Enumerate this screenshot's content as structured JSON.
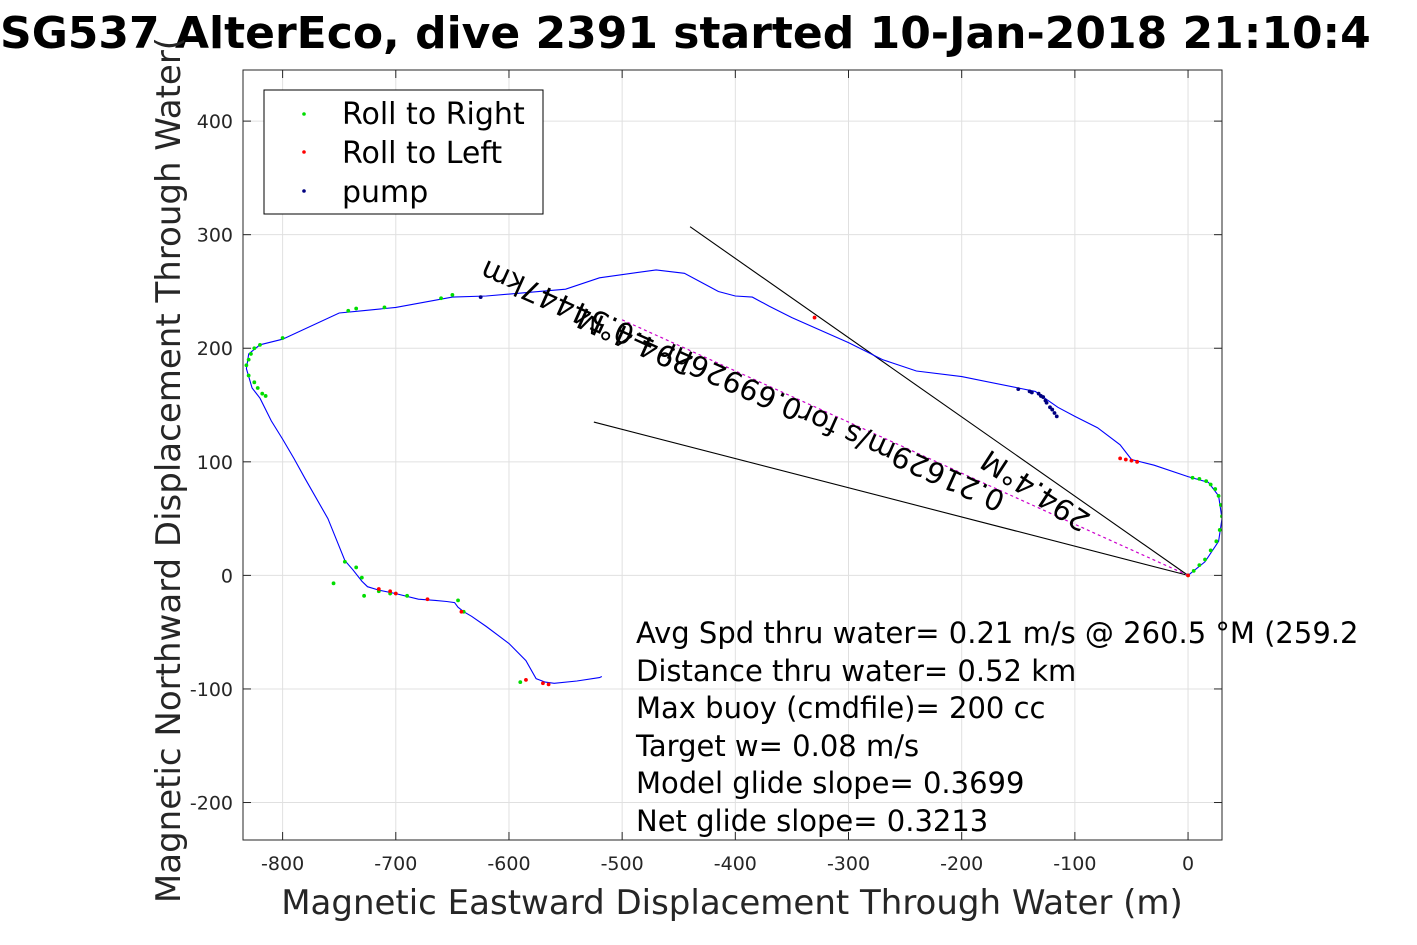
{
  "title": "SG537 AlterEco, dive 2391 started 10-Jan-2018 21:10:4",
  "chart_data": {
    "type": "line",
    "title": "SG537 AlterEco, dive 2391 started 10-Jan-2018 21:10:4",
    "xlabel": "Magnetic Eastward Displacement Through Water (m)",
    "ylabel": "Magnetic Northward Displacement Through Water(",
    "xlim": [
      -835,
      30
    ],
    "ylim": [
      -233,
      445
    ],
    "xticks": [
      -800,
      -700,
      -600,
      -500,
      -400,
      -300,
      -200,
      -100,
      0
    ],
    "yticks": [
      -200,
      -100,
      0,
      100,
      200,
      300,
      400
    ],
    "grid": true,
    "legend_position": "top-left",
    "colors": {
      "track": "#0000ff",
      "roll_right": "#00dd00",
      "roll_left": "#ff0000",
      "pump": "#000080",
      "vector": "#cc00cc",
      "lines": "#000000"
    },
    "legend": [
      {
        "label": "Roll to Right",
        "color": "#00dd00"
      },
      {
        "label": "Roll to Left",
        "color": "#ff0000"
      },
      {
        "label": "pump",
        "color": "#000080"
      }
    ],
    "track": {
      "x": [
        0,
        15,
        27,
        30,
        27,
        18,
        0,
        -30,
        -50,
        -60,
        -80,
        -100,
        -115,
        -125,
        -135,
        -150,
        -200,
        -240,
        -270,
        -300,
        -350,
        -370,
        -385,
        -400,
        -415,
        -430,
        -445,
        -470,
        -520,
        -550,
        -620,
        -650,
        -700,
        -730,
        -750,
        -800,
        -820,
        -830,
        -832,
        -827,
        -820,
        -810,
        -800,
        -790,
        -780,
        -760,
        -745,
        -738,
        -730,
        -725,
        -715,
        -700,
        -680,
        -665,
        -655,
        -648,
        -645,
        -640,
        -633,
        -620,
        -600,
        -585,
        -576,
        -568,
        -560,
        -540,
        -520,
        -518
      ],
      "y": [
        0,
        12,
        30,
        50,
        70,
        82,
        87,
        97,
        102,
        115,
        130,
        140,
        148,
        155,
        162,
        165,
        175,
        180,
        190,
        205,
        227,
        237,
        245,
        246,
        250,
        258,
        266,
        269,
        262,
        252,
        246,
        245,
        236,
        233,
        231,
        208,
        203,
        195,
        182,
        165,
        156,
        136,
        120,
        103,
        85,
        50,
        13,
        5,
        -5,
        -10,
        -13,
        -16,
        -21,
        -22,
        -23,
        -24,
        -28,
        -32,
        -36,
        -45,
        -60,
        -75,
        -91,
        -94,
        -95,
        -93,
        -90,
        -89
      ]
    },
    "roll_right": {
      "x": [
        0,
        5,
        10,
        15,
        20,
        25,
        28,
        30,
        29,
        27,
        24,
        20,
        16,
        10,
        4,
        -710,
        -660,
        -735,
        -742,
        -650,
        -735,
        -745,
        -755,
        -800,
        -820,
        -825,
        -828,
        -830,
        -832,
        -830,
        -825,
        -822,
        -818,
        -815,
        -728,
        -730,
        -715,
        -705,
        -690,
        -645,
        -640,
        -590
      ],
      "y": [
        0,
        4,
        9,
        14,
        22,
        30,
        40,
        52,
        62,
        70,
        76,
        80,
        83,
        85,
        86,
        236,
        244,
        235,
        233,
        247,
        7,
        12,
        -7,
        209,
        203,
        200,
        195,
        190,
        185,
        176,
        170,
        165,
        160,
        158,
        -18,
        -2,
        -14,
        -16,
        -18,
        -22,
        -32,
        -94
      ]
    },
    "roll_left": {
      "x": [
        0,
        -45,
        -50,
        -55,
        -60,
        -330,
        -570,
        -565,
        -715,
        -705,
        -700,
        -672,
        -642,
        -585
      ],
      "y": [
        0,
        100,
        101,
        102,
        103,
        227,
        -95,
        -96,
        -12,
        -14,
        -16,
        -21,
        -32,
        -92
      ]
    },
    "pump": {
      "x": [
        -625,
        -150,
        -140,
        -132,
        -128,
        -125,
        -122,
        -120,
        -118,
        -116,
        -138,
        -130,
        -126
      ],
      "y": [
        245,
        164,
        162,
        160,
        157,
        152,
        148,
        146,
        143,
        140,
        161,
        158,
        154
      ]
    },
    "lines": [
      {
        "x": [
          0,
          -440
        ],
        "y": [
          0,
          307
        ]
      },
      {
        "x": [
          0,
          -525
        ],
        "y": [
          0,
          135
        ]
      }
    ],
    "vector": {
      "x": [
        0,
        -500
      ],
      "y": [
        0,
        225
      ]
    },
    "vector_labels": [
      {
        "text": "294.4°M",
        "at": [
          -485,
          214
        ],
        "angle": 204.2
      },
      {
        "text": "0.21629m/s for0.69926hr =0.54447km",
        "at": [
          -390,
          175
        ],
        "angle": 204.2
      },
      {
        "text": "294.4°M",
        "at": [
          -130,
          82
        ],
        "angle": 213
      }
    ],
    "annotations": [
      "Avg Spd thru water=  0.21 m/s @ 260.5 °M (259.2",
      "Distance thru water=  0.52 km",
      "Max buoy (cmdfile)= 200 cc",
      "Target w= 0.08 m/s",
      "Model glide slope= 0.3699",
      "Net glide slope= 0.3213"
    ]
  }
}
